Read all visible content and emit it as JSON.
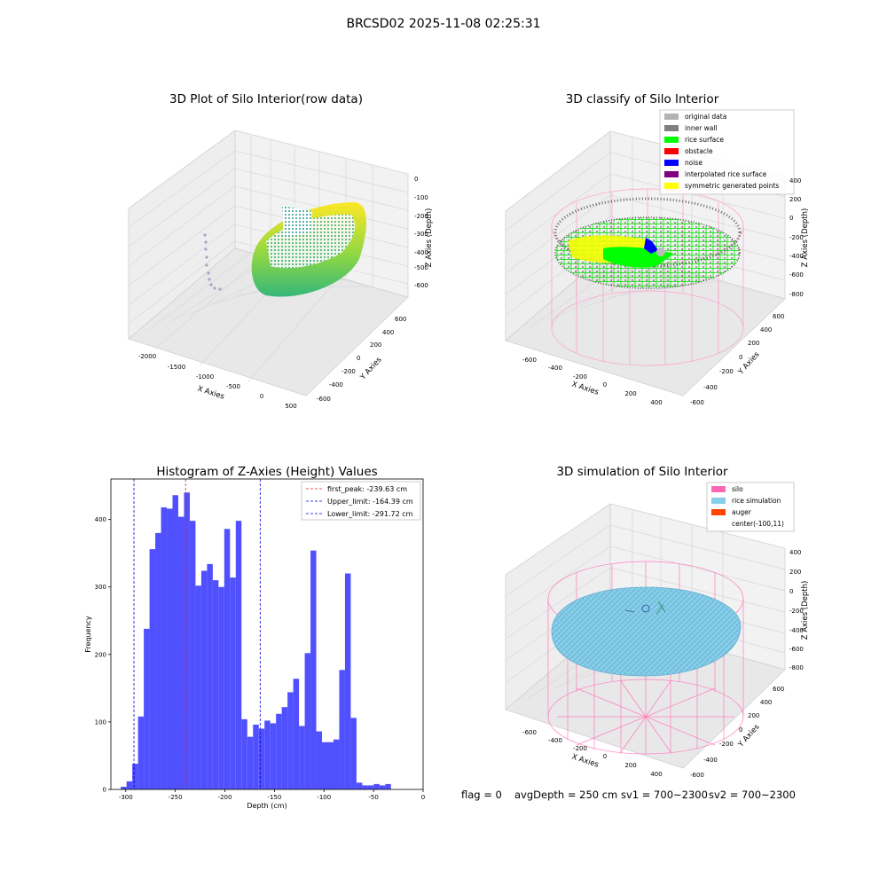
{
  "figure_title": "BRCSD02 2025-11-08 02:25:31",
  "footer": {
    "flag": "flag = 0",
    "avg_depth": "avgDepth = 250 cm",
    "sv1": "sv1 = 700~2300",
    "sv2": "sv2 = 700~2300"
  },
  "colors": {
    "bar": "#5050ff",
    "first_peak_line": "#e0262a",
    "limit_line": "#0000dd",
    "rice_surface": "#00ff00",
    "inner_wall": "#808080",
    "original_data": "#b3b3b3",
    "obstacle": "#ff0000",
    "noise": "#0000ff",
    "interpolated": "#800080",
    "symmetric": "#ffff00",
    "silo": "#ff69b4",
    "rice_sim": "#87ceeb",
    "auger": "#ff4500"
  },
  "chart_data": [
    {
      "type": "scatter",
      "subtype": "3d-scatter",
      "title": "3D Plot of Silo Interior(row data)",
      "xlabel": "X Axies",
      "ylabel": "Y Axies",
      "zlabel": "Z Axies (Depth)",
      "x_ticks": [
        "-2000",
        "-1500",
        "-1000",
        "-500",
        "0",
        "500"
      ],
      "y_ticks": [
        "-600",
        "-400",
        "-200",
        "0",
        "200",
        "400",
        "600"
      ],
      "z_ticks": [
        "0",
        "-100",
        "-200",
        "-300",
        "-400",
        "-500",
        "-600"
      ],
      "grid": true
    },
    {
      "type": "scatter",
      "subtype": "3d-scatter",
      "title": "3D classify of Silo Interior",
      "xlabel": "X Axies",
      "ylabel": "Y Axies",
      "zlabel": "Z Axies (Depth)",
      "x_ticks": [
        "-600",
        "-400",
        "-200",
        "0",
        "200",
        "400"
      ],
      "y_ticks": [
        "-600",
        "-400",
        "-200",
        "0",
        "200",
        "400",
        "600"
      ],
      "z_ticks": [
        "400",
        "200",
        "0",
        "-200",
        "-400",
        "-600",
        "-800"
      ],
      "legend": [
        "original data",
        "inner wall",
        "rice surface",
        "obstacle",
        "noise",
        "interpolated rice surface",
        "symmetric generated points"
      ],
      "legend_placement": "top-right",
      "grid": true
    },
    {
      "type": "bar",
      "subtype": "histogram",
      "title": "Histogram of Z-Axies (Height) Values",
      "xlabel": "Depth (cm)",
      "ylabel": "Frequency",
      "xlim": [
        -315,
        0
      ],
      "ylim": [
        0,
        460
      ],
      "x_ticks": [
        -300,
        -250,
        -200,
        -150,
        -100,
        -50,
        0
      ],
      "y_ticks": [
        0,
        100,
        200,
        300,
        400
      ],
      "bin_start": -305,
      "bin_width": 5.8,
      "values": [
        4,
        12,
        38,
        108,
        238,
        356,
        380,
        418,
        416,
        436,
        404,
        440,
        398,
        302,
        324,
        334,
        310,
        300,
        386,
        314,
        398,
        104,
        78,
        96,
        90,
        102,
        98,
        112,
        122,
        144,
        164,
        94,
        202,
        354,
        86,
        70,
        70,
        74,
        177,
        320,
        106,
        10,
        6,
        6,
        8,
        6,
        8
      ],
      "vlines": [
        {
          "x": -239.63,
          "label": "first_peak: -239.63 cm",
          "kind": "peak"
        },
        {
          "x": -164.39,
          "label": "Upper_limit: -164.39 cm",
          "kind": "limit"
        },
        {
          "x": -291.72,
          "label": "Lower_limit: -291.72 cm",
          "kind": "limit"
        }
      ],
      "legend_placement": "top-right",
      "grid": false
    },
    {
      "type": "scatter",
      "subtype": "3d-surface",
      "title": "3D simulation of Silo Interior",
      "xlabel": "X Axies",
      "ylabel": "Y Axies",
      "zlabel": "Z Axies (Depth)",
      "x_ticks": [
        "-600",
        "-400",
        "-200",
        "0",
        "200",
        "400"
      ],
      "y_ticks": [
        "-600",
        "-400",
        "-200",
        "0",
        "200",
        "400",
        "600"
      ],
      "z_ticks": [
        "400",
        "200",
        "0",
        "-200",
        "-400",
        "-600",
        "-800"
      ],
      "legend": [
        "silo",
        "rice simulation",
        "auger",
        "center(-100,11)"
      ],
      "legend_placement": "top-right",
      "grid": true
    }
  ]
}
